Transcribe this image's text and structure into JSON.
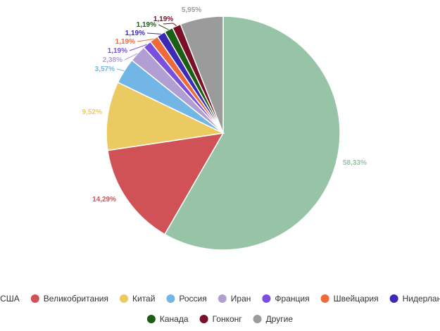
{
  "chart_data": {
    "type": "pie",
    "title": "",
    "legend_position": "bottom",
    "slices": [
      {
        "name": "США",
        "value": 58.33,
        "label": "58,33%",
        "color": "#97c4a7"
      },
      {
        "name": "Великобритания",
        "value": 14.29,
        "label": "14,29%",
        "color": "#d05257"
      },
      {
        "name": "Китай",
        "value": 9.52,
        "label": "9,52%",
        "color": "#ecca62"
      },
      {
        "name": "Россия",
        "value": 3.57,
        "label": "3,57%",
        "color": "#72b6e6"
      },
      {
        "name": "Иран",
        "value": 2.38,
        "label": "2,38%",
        "color": "#b19fd3"
      },
      {
        "name": "Франция",
        "value": 1.19,
        "label": "1,19%",
        "color": "#7a4fe0"
      },
      {
        "name": "Швейцария",
        "value": 1.19,
        "label": "1,19%",
        "color": "#ee6a3b"
      },
      {
        "name": "Нидерланды",
        "value": 1.19,
        "label": "1,19%",
        "color": "#3b2ab8"
      },
      {
        "name": "Канада",
        "value": 1.19,
        "label": "1,19%",
        "color": "#1d5e16"
      },
      {
        "name": "Гонконг",
        "value": 1.19,
        "label": "1,19%",
        "color": "#7a0f27"
      },
      {
        "name": "Другие",
        "value": 5.95,
        "label": "5,95%",
        "color": "#9b9b9b"
      }
    ]
  }
}
